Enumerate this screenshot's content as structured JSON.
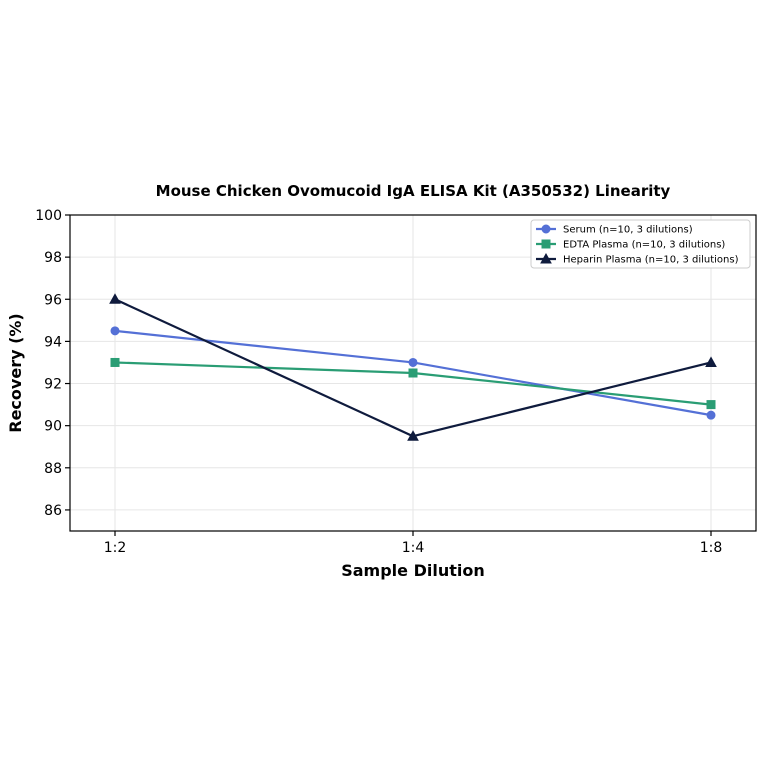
{
  "chart_data": {
    "type": "line",
    "title": "Mouse Chicken Ovomucoid IgA ELISA Kit (A350532) Linearity",
    "xlabel": "Sample Dilution",
    "ylabel": "Recovery (%)",
    "categories": [
      "1:2",
      "1:4",
      "1:8"
    ],
    "ylim": [
      85,
      100
    ],
    "yticks": [
      86,
      88,
      90,
      92,
      94,
      96,
      98,
      100
    ],
    "grid": true,
    "legend_position": "top-right",
    "series": [
      {
        "name": "Serum (n=10, 3 dilutions)",
        "values": [
          94.5,
          93.0,
          90.5
        ],
        "color": "#5470d6",
        "marker": "circle"
      },
      {
        "name": "EDTA Plasma (n=10, 3 dilutions)",
        "values": [
          93.0,
          92.5,
          91.0
        ],
        "color": "#2a9d74",
        "marker": "square"
      },
      {
        "name": "Heparin Plasma (n=10, 3 dilutions)",
        "values": [
          96.0,
          89.5,
          93.0
        ],
        "color": "#0f1b3d",
        "marker": "triangle"
      }
    ]
  }
}
